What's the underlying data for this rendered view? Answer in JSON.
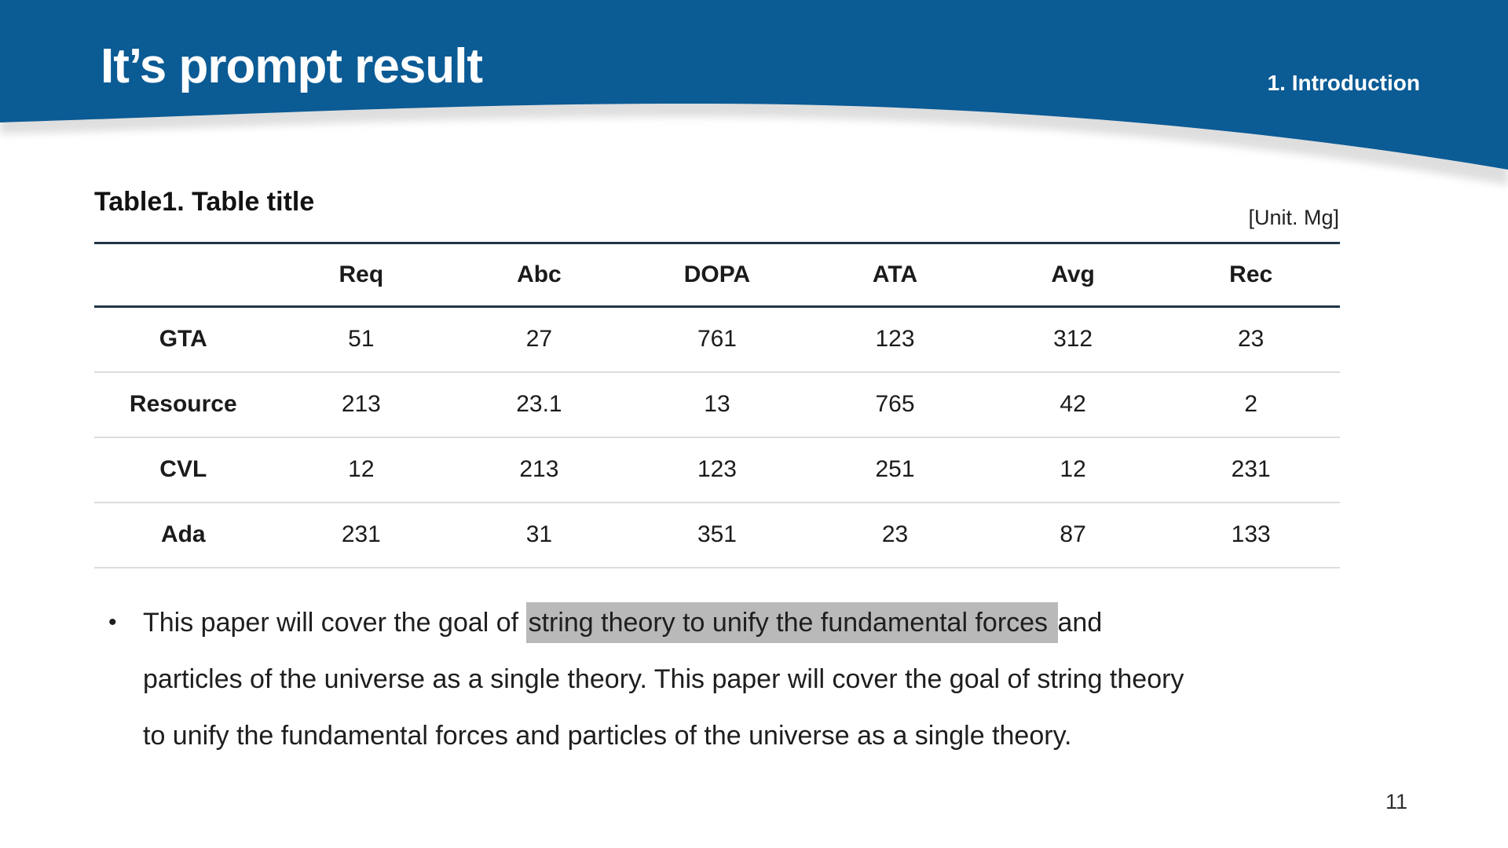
{
  "slide": {
    "title": "It’s prompt result",
    "section_label": "1. Introduction",
    "page_number": "11",
    "accent_color": "#0b5b95",
    "table_border_color": "#203647",
    "row_separator_color": "#dcdcdc"
  },
  "table": {
    "caption": "Table1. Table title",
    "unit_label": "[Unit. Mg]",
    "columns": [
      "",
      "Req",
      "Abc",
      "DOPA",
      "ATA",
      "Avg",
      "Rec"
    ],
    "rows": [
      {
        "label": "GTA",
        "values": [
          "51",
          "27",
          "761",
          "123",
          "312",
          "23"
        ]
      },
      {
        "label": "Resource",
        "values": [
          "213",
          "23.1",
          "13",
          "765",
          "42",
          "2"
        ]
      },
      {
        "label": "CVL",
        "values": [
          "12",
          "213",
          "123",
          "251",
          "12",
          "231"
        ]
      },
      {
        "label": "Ada",
        "values": [
          "231",
          "31",
          "351",
          "23",
          "87",
          "133"
        ]
      }
    ]
  },
  "bullet": {
    "marker": "•",
    "highlight_color": "#b9b9b9",
    "lines": [
      {
        "segments": [
          {
            "text": "This paper will cover the goal of ",
            "highlight": false
          },
          {
            "text": "string theory to unify the fundamental forces ",
            "highlight": true
          },
          {
            "text": "and",
            "highlight": false
          }
        ]
      },
      {
        "segments": [
          {
            "text": "particles of the universe as a single theory. This paper will cover the goal of string theory",
            "highlight": false
          }
        ]
      },
      {
        "segments": [
          {
            "text": "to unify the fundamental forces and particles of the universe as a single theory.",
            "highlight": false
          }
        ]
      }
    ]
  }
}
